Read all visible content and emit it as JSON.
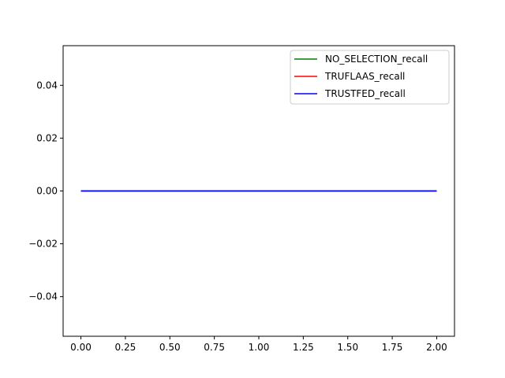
{
  "chart_data": {
    "type": "line",
    "title": "",
    "xlabel": "",
    "ylabel": "",
    "xlim": [
      -0.1,
      2.1
    ],
    "ylim": [
      -0.055,
      0.055
    ],
    "x": [
      0,
      1,
      2
    ],
    "xticks": [
      0.0,
      0.25,
      0.5,
      0.75,
      1.0,
      1.25,
      1.5,
      1.75,
      2.0
    ],
    "xtick_labels": [
      "0.00",
      "0.25",
      "0.50",
      "0.75",
      "1.00",
      "1.25",
      "1.50",
      "1.75",
      "2.00"
    ],
    "yticks": [
      -0.04,
      -0.02,
      0.0,
      0.02,
      0.04
    ],
    "ytick_labels": [
      "−0.04",
      "−0.02",
      "0.00",
      "0.02",
      "0.04"
    ],
    "grid": false,
    "legend_position": "top-right",
    "series": [
      {
        "name": "NO_SELECTION_recall",
        "values": [
          0,
          0,
          0
        ],
        "color": "#008000"
      },
      {
        "name": "TRUFLAAS_recall",
        "values": [
          0,
          0,
          0
        ],
        "color": "#ff0000"
      },
      {
        "name": "TRUSTFED_recall",
        "values": [
          0,
          0,
          0
        ],
        "color": "#0000ff"
      }
    ]
  }
}
